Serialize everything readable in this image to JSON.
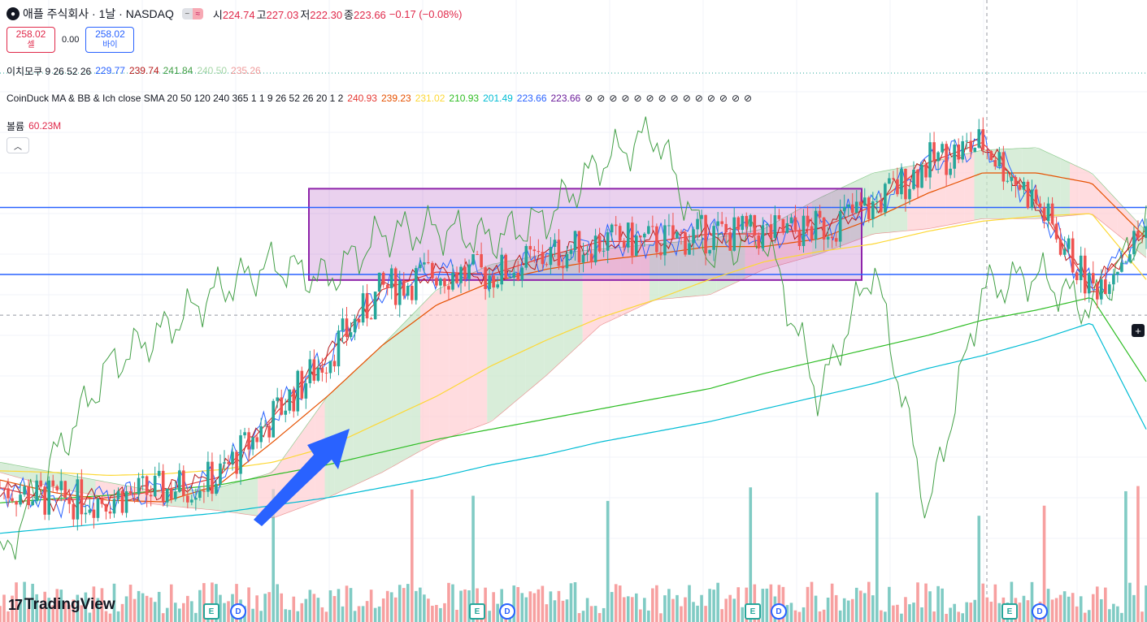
{
  "header": {
    "symbol_title": "애플 주식회사 · 1날 · NASDAQ",
    "logo_icon": "apple-logo-icon",
    "ohlc": [
      {
        "key": "시",
        "value": "224.74"
      },
      {
        "key": "고",
        "value": "227.03"
      },
      {
        "key": "저",
        "value": "222.30"
      },
      {
        "key": "종",
        "value": "223.66"
      }
    ],
    "change": "−0.17 (−0.08%)"
  },
  "trade": {
    "sell_price": "258.02",
    "sell_label": "셀",
    "spread": "0.00",
    "buy_price": "258.02",
    "buy_label": "바이"
  },
  "indicators": [
    {
      "name": "이치모쿠 9 26 52 26",
      "values": [
        {
          "v": "229.77",
          "color": "#2962ff"
        },
        {
          "v": "239.74",
          "color": "#b71c1c"
        },
        {
          "v": "241.84",
          "color": "#43a047"
        },
        {
          "v": "240.50",
          "color": "#a5d6a7"
        },
        {
          "v": "235.26",
          "color": "#ef9a9a"
        }
      ]
    },
    {
      "name": "CoinDuck MA & BB & Ich close SMA 20 50 120 240 365 1 1 9 26 52 26 20 1 2",
      "values": [
        {
          "v": "240.93",
          "color": "#e53935"
        },
        {
          "v": "239.23",
          "color": "#e65100"
        },
        {
          "v": "231.02",
          "color": "#fdd835"
        },
        {
          "v": "210.93",
          "color": "#2ebd24"
        },
        {
          "v": "201.49",
          "color": "#00bcd4"
        },
        {
          "v": "223.66",
          "color": "#2962ff"
        },
        {
          "v": "223.66",
          "color": "#6a1b9a"
        }
      ],
      "empty_symbol": "⊘",
      "empty_count": 14
    },
    {
      "name": "볼륨",
      "values": [
        {
          "v": "60.23M",
          "color": "#e0294a"
        }
      ]
    }
  ],
  "collapse_icon": "chevron-up-icon",
  "branding": {
    "logo_mark": "17",
    "text": "TradingView"
  },
  "events": [
    {
      "type": "E",
      "icon": "earnings-icon"
    },
    {
      "type": "D",
      "icon": "dividend-icon"
    },
    {
      "type": "E",
      "icon": "earnings-icon"
    },
    {
      "type": "D",
      "icon": "dividend-icon"
    },
    {
      "type": "E",
      "icon": "earnings-icon"
    },
    {
      "type": "D",
      "icon": "dividend-icon"
    },
    {
      "type": "E",
      "icon": "earnings-icon"
    },
    {
      "type": "D",
      "icon": "dividend-icon"
    }
  ],
  "colors": {
    "up": "#26a69a",
    "down": "#ef5350",
    "vol_up": "#80cbc4",
    "vol_down": "#f7a0a0",
    "ma20": "#e53935",
    "ma50": "#e65100",
    "ma120": "#fdd835",
    "ma240": "#2ebd24",
    "ma365": "#00bcd4",
    "tenkan": "#2962ff",
    "kijun": "#b71c1c",
    "chikou": "#43a047",
    "cloud_bull": "#c8e6c9",
    "cloud_bear": "#ffcdd2",
    "box_fill": "rgba(171,71,188,0.25)",
    "box_border": "#8e24aa",
    "level_line": "#2962ff",
    "arrow": "#2962ff"
  },
  "chart_data": {
    "type": "candlestick",
    "price_levels": [
      245.2,
      232.0
    ],
    "last_price": 223.66,
    "range_box": {
      "y_top": 248.9,
      "y_bottom": 230.9
    },
    "ma": {
      "ma20": [
        190.0,
        187.5,
        188.0,
        189.5,
        192.0,
        204.0,
        216.0,
        229.0,
        232.5,
        232.0,
        235.5,
        238.5,
        238.5,
        240.0,
        240.0,
        241.0,
        245.5,
        254.0,
        258.0,
        246.0,
        229.0,
        240.9
      ],
      "ma50": [
        191.5,
        189.0,
        187.5,
        187.2,
        190.5,
        199.0,
        208.0,
        218.0,
        226.0,
        230.5,
        233.0,
        234.8,
        236.0,
        237.5,
        237.5,
        239.0,
        243.0,
        248.0,
        252.0,
        252.0,
        250.0,
        239.2
      ],
      "ma120": [
        193.3,
        193.0,
        192.4,
        192.7,
        193.5,
        195.0,
        198.0,
        203.0,
        208.0,
        214.0,
        219.0,
        223.5,
        227.0,
        231.0,
        234.5,
        236.5,
        238.0,
        240.5,
        242.5,
        243.5,
        244.0,
        231.0
      ],
      "ma240": [
        187.0,
        187.8,
        188.5,
        189.5,
        190.5,
        192.5,
        194.5,
        197.0,
        199.5,
        201.5,
        203.5,
        205.5,
        207.5,
        209.5,
        212.5,
        215.0,
        217.5,
        220.0,
        223.0,
        225.0,
        227.5,
        210.9
      ],
      "ma365": [
        181.0,
        182.0,
        183.0,
        184.0,
        185.0,
        186.5,
        188.0,
        190.0,
        192.0,
        194.5,
        196.5,
        199.0,
        201.0,
        203.0,
        205.5,
        208.0,
        210.5,
        213.5,
        216.0,
        219.0,
        222.5,
        201.5
      ]
    },
    "cloud": {
      "upper": [
        195.0,
        193.0,
        191.0,
        189.0,
        190.0,
        193.0,
        208.0,
        218.0,
        229.0,
        234.0,
        236.0,
        237.0,
        238.0,
        239.0,
        241.0,
        247.0,
        252.0,
        254.0,
        256.5,
        257.0,
        252.0,
        240.5
      ],
      "lower": [
        193.0,
        190.0,
        188.0,
        186.5,
        185.5,
        184.0,
        188.0,
        193.0,
        199.0,
        203.0,
        212.0,
        222.0,
        227.0,
        228.0,
        233.0,
        236.0,
        240.0,
        241.0,
        243.0,
        243.0,
        244.0,
        235.3
      ]
    },
    "chikou": [
      175.0,
      196.0,
      214.0,
      221.0,
      229.0,
      234.0,
      231.0,
      240.0,
      241.0,
      239.0,
      243.0,
      254.0,
      260.0,
      236.0,
      240.0,
      208.0,
      234.0,
      185.0,
      229.0,
      232.0,
      225.0,
      241.8
    ],
    "volume_scale_m": 318.76
  }
}
